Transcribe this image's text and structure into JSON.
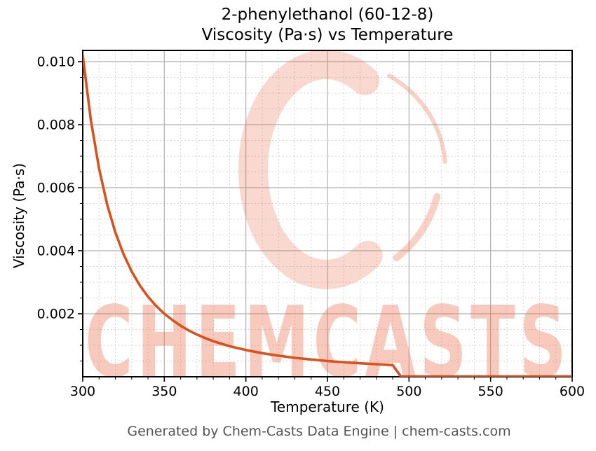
{
  "header": {
    "title_line1": "2-phenylethanol (60-12-8)",
    "title_line2": "Viscosity (Pa·s) vs Temperature"
  },
  "footer": {
    "text": "Generated by Chem-Casts Data Engine | chem-casts.com"
  },
  "watermark": {
    "text": "CHEMCASTS",
    "logo": "chemcasts-c-swirl-logo",
    "color": "#e8653f",
    "text_opacity": 0.34,
    "logo_opacity": 0.25
  },
  "chart_data": {
    "type": "line",
    "title": "2-phenylethanol (60-12-8)\nViscosity (Pa·s) vs Temperature",
    "xlabel": "Temperature (K)",
    "ylabel": "Viscosity (Pa·s)",
    "xlim": [
      300,
      600
    ],
    "ylim": [
      0,
      0.010356
    ],
    "x_major_ticks": [
      300,
      350,
      400,
      450,
      500,
      550,
      600
    ],
    "x_tick_labels": [
      "300",
      "350",
      "400",
      "450",
      "500",
      "550",
      "600"
    ],
    "x_minor_step": 10,
    "y_major_ticks": [
      0.002,
      0.004,
      0.006,
      0.008,
      0.01
    ],
    "y_tick_labels": [
      "0.002",
      "0.004",
      "0.006",
      "0.008",
      "0.010"
    ],
    "y_minor_step": 0.0005,
    "grid": true,
    "legend": "none",
    "line_color": "#d9521d",
    "line_width": 3.6,
    "major_grid_color": "#b0b0b0",
    "minor_grid_color": "#d4d4d4",
    "series": [
      {
        "name": "viscosity",
        "points": [
          [
            300,
            0.0102
          ],
          [
            305,
            0.00814
          ],
          [
            310,
            0.00661
          ],
          [
            315,
            0.00546
          ],
          [
            320,
            0.00458
          ],
          [
            325,
            0.00389
          ],
          [
            330,
            0.00334
          ],
          [
            335,
            0.0029
          ],
          [
            340,
            0.00254
          ],
          [
            345,
            0.00225
          ],
          [
            350,
            0.002
          ],
          [
            355,
            0.0018
          ],
          [
            360,
            0.00162
          ],
          [
            365,
            0.00147
          ],
          [
            370,
            0.00134
          ],
          [
            375,
            0.00123
          ],
          [
            380,
            0.00113
          ],
          [
            385,
            0.00105
          ],
          [
            390,
            0.00097
          ],
          [
            395,
            0.00091
          ],
          [
            400,
            0.00085
          ],
          [
            410,
            0.00075
          ],
          [
            420,
            0.00067
          ],
          [
            430,
            0.0006
          ],
          [
            440,
            0.00055
          ],
          [
            450,
            0.0005
          ],
          [
            460,
            0.00046
          ],
          [
            470,
            0.00043
          ],
          [
            480,
            0.0004
          ],
          [
            490,
            0.00037
          ],
          [
            495,
            1e-05
          ],
          [
            500,
            1e-05
          ],
          [
            520,
            1e-05
          ],
          [
            540,
            1e-05
          ],
          [
            560,
            1e-05
          ],
          [
            580,
            1e-05
          ],
          [
            600,
            1e-05
          ]
        ]
      }
    ]
  }
}
